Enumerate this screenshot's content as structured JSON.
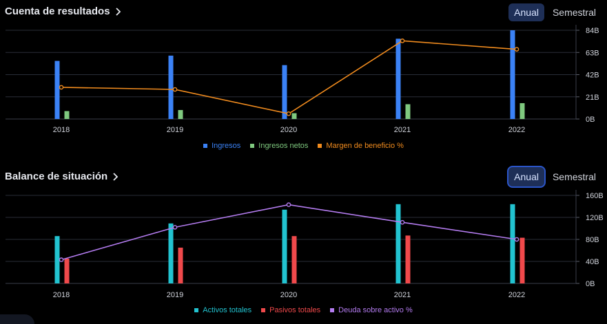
{
  "income": {
    "title": "Cuenta de resultados",
    "toggle": {
      "annual": "Anual",
      "semiannual": "Semestral"
    },
    "legend": [
      {
        "label": "Ingresos",
        "color": "#3b82f6"
      },
      {
        "label": "Ingresos netos",
        "color": "#7fc97f"
      },
      {
        "label": "Margen de beneficio %",
        "color": "#f28c1e"
      }
    ]
  },
  "balance": {
    "title": "Balance de situación",
    "toggle": {
      "annual": "Anual",
      "semiannual": "Semestral"
    },
    "legend": [
      {
        "label": "Activos totales",
        "color": "#22c3d0"
      },
      {
        "label": "Pasivos totales",
        "color": "#f0494b"
      },
      {
        "label": "Deuda sobre activo %",
        "color": "#b47cf0"
      }
    ]
  },
  "chart_data": [
    {
      "type": "bar",
      "title": "Cuenta de resultados",
      "categories": [
        "2018",
        "2019",
        "2020",
        "2021",
        "2022"
      ],
      "y_ticks": [
        "0B",
        "21B",
        "42B",
        "63B",
        "84B"
      ],
      "ylim": [
        0,
        84
      ],
      "grid": true,
      "legend_position": "bottom",
      "series": [
        {
          "name": "Ingresos",
          "type": "bar",
          "color": "#3b82f6",
          "values": [
            55,
            60,
            51,
            76,
            84
          ]
        },
        {
          "name": "Ingresos netos",
          "type": "bar",
          "color": "#7fc97f",
          "values": [
            7.5,
            8.5,
            5.5,
            14,
            15
          ]
        },
        {
          "name": "Margen de beneficio %",
          "type": "line",
          "color": "#f28c1e",
          "values": [
            30,
            28,
            5,
            74,
            66
          ]
        }
      ]
    },
    {
      "type": "bar",
      "title": "Balance de situación",
      "categories": [
        "2018",
        "2019",
        "2020",
        "2021",
        "2022"
      ],
      "y_ticks": [
        "0B",
        "40B",
        "80B",
        "120B",
        "160B"
      ],
      "ylim": [
        0,
        160
      ],
      "grid": true,
      "legend_position": "bottom",
      "series": [
        {
          "name": "Activos totales",
          "type": "bar",
          "color": "#22c3d0",
          "values": [
            86,
            109,
            134,
            144,
            144
          ]
        },
        {
          "name": "Pasivos totales",
          "type": "bar",
          "color": "#f0494b",
          "values": [
            45,
            65,
            86,
            87,
            83
          ]
        },
        {
          "name": "Deuda sobre activo %",
          "type": "line",
          "color": "#b47cf0",
          "values": [
            43,
            102,
            143,
            111,
            80
          ]
        }
      ]
    }
  ]
}
